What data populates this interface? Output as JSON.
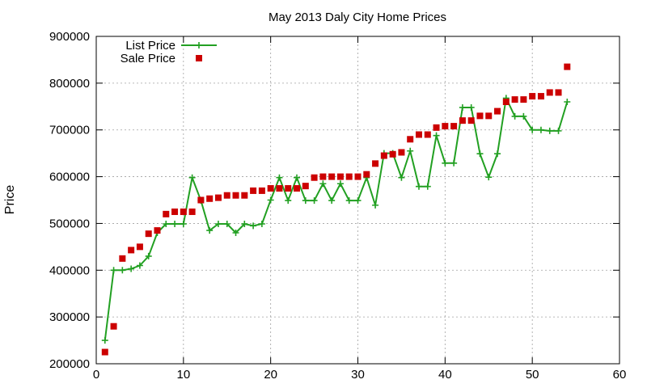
{
  "chart_data": {
    "type": "line",
    "title": "May 2013 Daly City Home Prices",
    "xlabel": "",
    "ylabel": "Price",
    "xlim": [
      0,
      60
    ],
    "ylim": [
      200000,
      900000
    ],
    "x_ticks": [
      0,
      10,
      20,
      30,
      40,
      50,
      60
    ],
    "y_ticks": [
      200000,
      300000,
      400000,
      500000,
      600000,
      700000,
      800000,
      900000
    ],
    "grid": true,
    "legend_position": "top-left",
    "series": [
      {
        "name": "List Price",
        "style": "line+cross",
        "color": "#22a022",
        "x": [
          1,
          2,
          3,
          4,
          5,
          6,
          7,
          8,
          9,
          10,
          11,
          12,
          13,
          14,
          15,
          16,
          17,
          18,
          19,
          20,
          21,
          22,
          23,
          24,
          25,
          26,
          27,
          28,
          29,
          30,
          31,
          32,
          33,
          34,
          35,
          36,
          37,
          38,
          39,
          40,
          41,
          42,
          43,
          44,
          45,
          46,
          47,
          48,
          49,
          50,
          51,
          52,
          53,
          54
        ],
        "values": [
          250000,
          400000,
          400000,
          403000,
          410000,
          430000,
          480000,
          499000,
          499000,
          499000,
          598000,
          549000,
          485000,
          499000,
          499000,
          480000,
          499000,
          495000,
          499000,
          550000,
          598000,
          549000,
          598000,
          549000,
          549000,
          585000,
          549000,
          585000,
          549000,
          549000,
          598000,
          539000,
          650000,
          650000,
          598000,
          655000,
          579000,
          579000,
          688000,
          629000,
          629000,
          748000,
          748000,
          649000,
          599000,
          649000,
          768000,
          729000,
          729000,
          700000,
          700000,
          698000,
          698000,
          760000
        ]
      },
      {
        "name": "Sale Price",
        "style": "square",
        "color": "#cc0000",
        "x": [
          1,
          2,
          3,
          4,
          5,
          6,
          7,
          8,
          9,
          10,
          11,
          12,
          13,
          14,
          15,
          16,
          17,
          18,
          19,
          20,
          21,
          22,
          23,
          24,
          25,
          26,
          27,
          28,
          29,
          30,
          31,
          32,
          33,
          34,
          35,
          36,
          37,
          38,
          39,
          40,
          41,
          42,
          43,
          44,
          45,
          46,
          47,
          48,
          49,
          50,
          51,
          52,
          53,
          54
        ],
        "values": [
          225000,
          280000,
          425000,
          443000,
          450000,
          478000,
          485000,
          520000,
          525000,
          525000,
          525000,
          550000,
          553000,
          555000,
          560000,
          560000,
          560000,
          570000,
          570000,
          575000,
          575000,
          575000,
          575000,
          580000,
          598000,
          600000,
          600000,
          600000,
          600000,
          600000,
          605000,
          628000,
          645000,
          648000,
          652000,
          680000,
          690000,
          690000,
          705000,
          708000,
          708000,
          720000,
          720000,
          730000,
          730000,
          740000,
          760000,
          765000,
          765000,
          772000,
          772000,
          780000,
          780000,
          835000
        ]
      }
    ]
  }
}
